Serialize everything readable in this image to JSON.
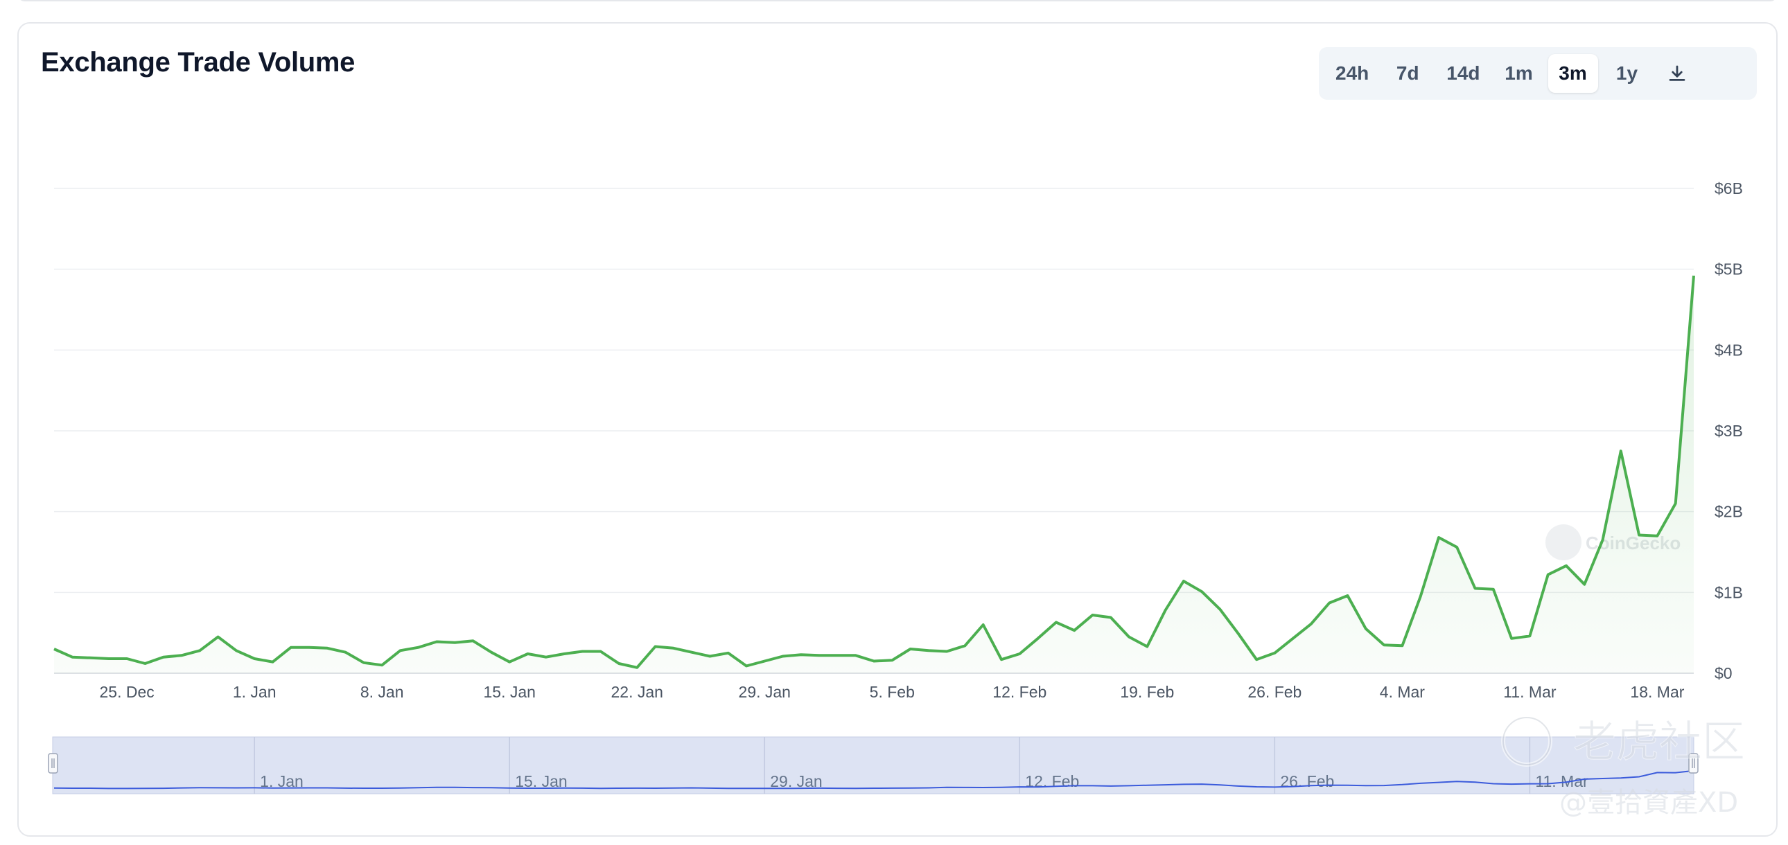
{
  "title": "Exchange Trade Volume",
  "range_buttons": [
    {
      "label": "24h",
      "active": false
    },
    {
      "label": "7d",
      "active": false
    },
    {
      "label": "14d",
      "active": false
    },
    {
      "label": "1m",
      "active": false
    },
    {
      "label": "3m",
      "active": true
    },
    {
      "label": "1y",
      "active": false
    }
  ],
  "download_icon": "download-icon",
  "colors": {
    "line": "#4caf50",
    "area": "#e8f5e9",
    "grid": "#e5e7eb",
    "navigator_fill": "#dde3f3",
    "navigator_line": "#3b5bdb"
  },
  "watermark": {
    "brand": "CoinGecko",
    "site": "老虎社区",
    "handle": "@壹拾資產XD"
  },
  "navigator": {
    "labels": [
      "1. Jan",
      "15. Jan",
      "29. Jan",
      "12. Feb",
      "26. Feb",
      "11. Mar"
    ]
  },
  "chart_data": {
    "type": "area",
    "title": "Exchange Trade Volume",
    "xlabel": "",
    "ylabel": "",
    "x_start": "2023-12-21",
    "x_ticks": [
      "25. Dec",
      "1. Jan",
      "8. Jan",
      "15. Jan",
      "22. Jan",
      "29. Jan",
      "5. Feb",
      "12. Feb",
      "19. Feb",
      "26. Feb",
      "4. Mar",
      "11. Mar",
      "18. Mar"
    ],
    "y_ticks": [
      "$0",
      "$1B",
      "$2B",
      "$3B",
      "$4B",
      "$5B",
      "$6B"
    ],
    "ylim": [
      0,
      6000000000
    ],
    "grid": true,
    "series": [
      {
        "values": [
          0.3,
          0.2,
          0.19,
          0.18,
          0.18,
          0.12,
          0.2,
          0.22,
          0.28,
          0.45,
          0.28,
          0.18,
          0.14,
          0.32,
          0.32,
          0.31,
          0.26,
          0.13,
          0.1,
          0.28,
          0.32,
          0.39,
          0.38,
          0.4,
          0.26,
          0.14,
          0.24,
          0.2,
          0.24,
          0.27,
          0.27,
          0.12,
          0.07,
          0.33,
          0.31,
          0.26,
          0.21,
          0.25,
          0.09,
          0.15,
          0.21,
          0.23,
          0.22,
          0.22,
          0.22,
          0.15,
          0.16,
          0.3,
          0.28,
          0.27,
          0.34,
          0.6,
          0.17,
          0.24,
          0.43,
          0.63,
          0.53,
          0.72,
          0.69,
          0.45,
          0.33,
          0.78,
          1.14,
          1.01,
          0.79,
          0.49,
          0.17,
          0.25,
          0.43,
          0.61,
          0.87,
          0.96,
          0.55,
          0.35,
          0.34,
          0.95,
          1.68,
          1.56,
          1.05,
          1.04,
          0.43,
          0.46,
          1.22,
          1.33,
          1.1,
          1.65,
          2.75,
          1.71,
          1.7,
          2.1,
          4.92
        ]
      }
    ]
  }
}
